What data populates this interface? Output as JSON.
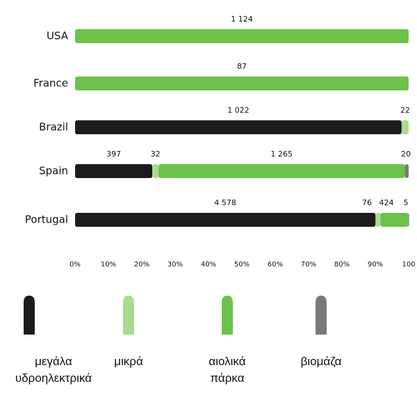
{
  "chart_data": {
    "type": "bar",
    "orientation": "horizontal",
    "stacking": "percent",
    "categories": [
      "USA",
      "France",
      "Brazil",
      "Spain",
      "Portugal"
    ],
    "series": [
      {
        "name": "μεγάλα υδροηλεκτρικά",
        "color": "#1c1c1c",
        "values": [
          null,
          null,
          1022,
          397,
          4578
        ],
        "value_labels": [
          null,
          null,
          "1 022",
          "397",
          "4 578"
        ]
      },
      {
        "name": "μικρά",
        "color": "#a9dc8e",
        "values": [
          null,
          null,
          22,
          32,
          76
        ]
      },
      {
        "name": "αιολικά πάρκα",
        "color": "#6cc24a",
        "values": [
          1124,
          87,
          null,
          1265,
          424
        ],
        "value_labels": [
          "1 124",
          "87",
          null,
          "1 265",
          "424"
        ]
      },
      {
        "name": "βιομάζα",
        "color": "#7a7a7a",
        "values": [
          null,
          null,
          null,
          20,
          5
        ]
      }
    ],
    "xlim": [
      0,
      100
    ],
    "xticks": [
      {
        "value": 0,
        "label": "0%"
      },
      {
        "value": 10,
        "label": "10%"
      },
      {
        "value": 20,
        "label": "20%"
      },
      {
        "value": 30,
        "label": "30%"
      },
      {
        "value": 40,
        "label": "40%"
      },
      {
        "value": 50,
        "label": "50%"
      },
      {
        "value": 60,
        "label": "60%"
      },
      {
        "value": 70,
        "label": "70%"
      },
      {
        "value": 80,
        "label": "80%"
      },
      {
        "value": 90,
        "label": "90%"
      },
      {
        "value": 100,
        "label": "100"
      }
    ]
  }
}
